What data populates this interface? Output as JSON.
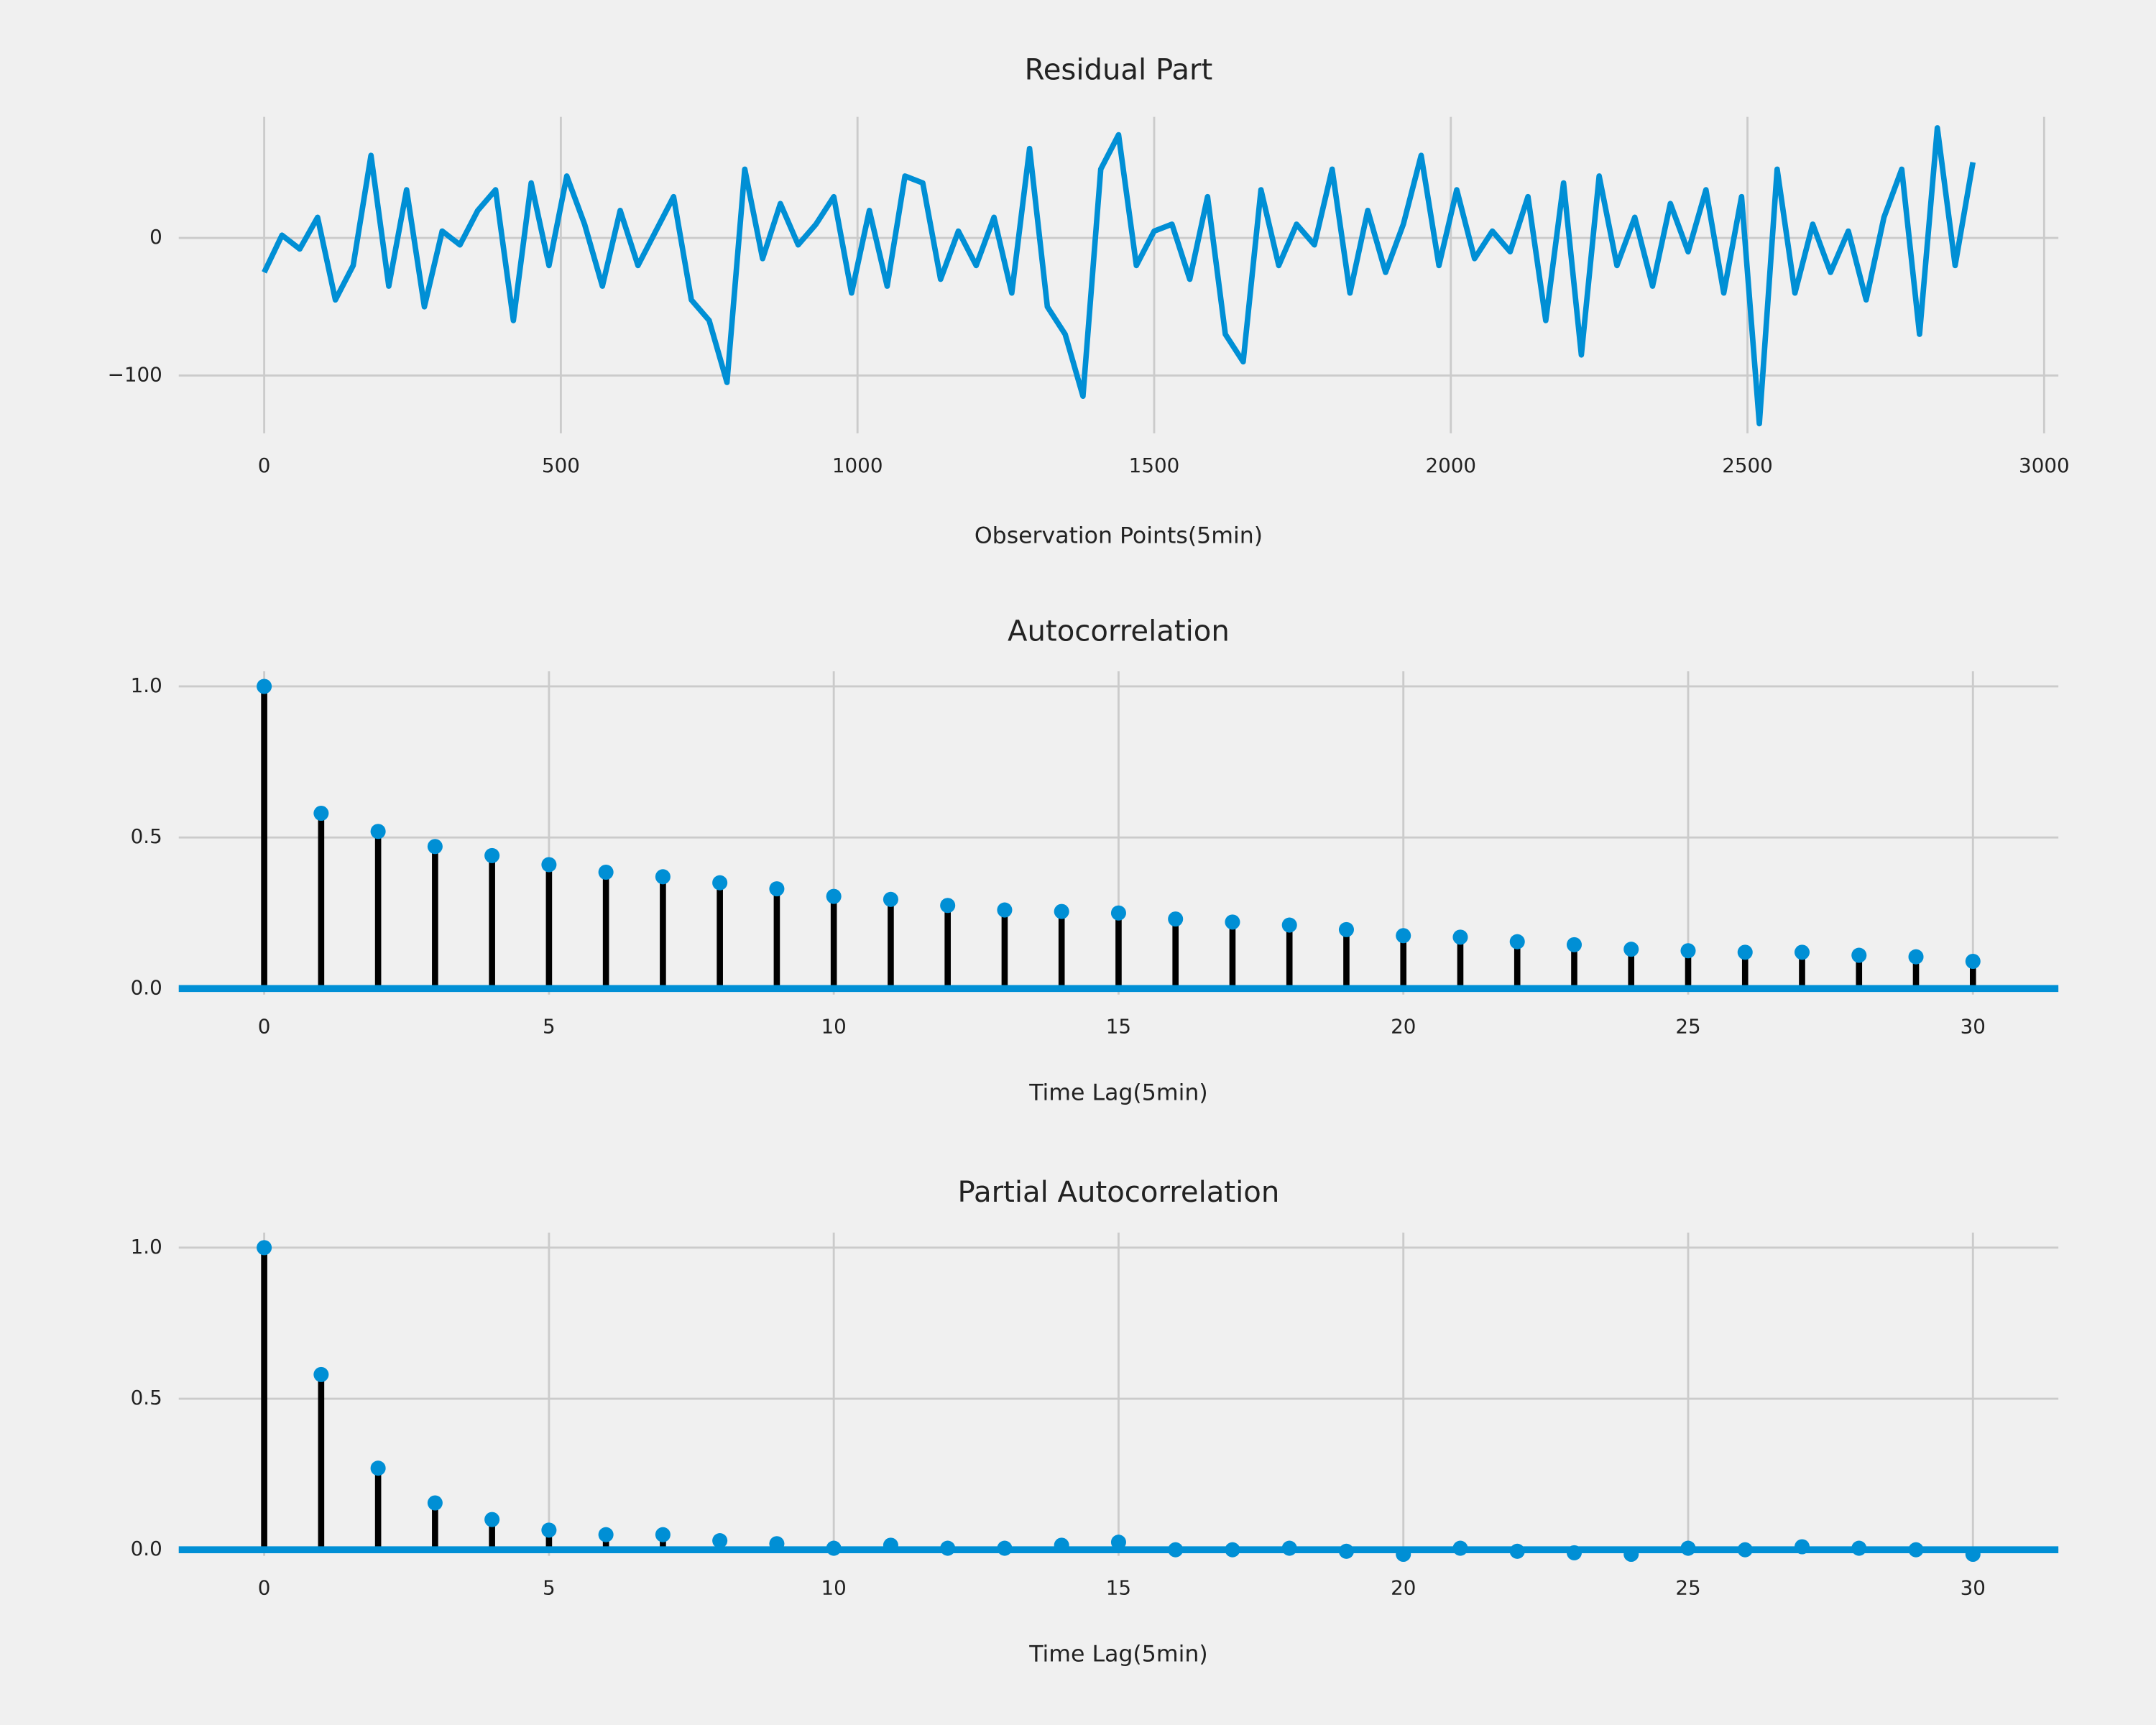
{
  "chart_data": [
    {
      "type": "line",
      "title": "Residual Part",
      "xlabel": "Observation Points(5min)",
      "x": [
        0,
        30,
        60,
        90,
        120,
        150,
        180,
        210,
        240,
        270,
        300,
        330,
        360,
        390,
        420,
        450,
        480,
        510,
        540,
        570,
        600,
        630,
        660,
        690,
        720,
        750,
        780,
        810,
        840,
        870,
        900,
        930,
        960,
        990,
        1020,
        1050,
        1080,
        1110,
        1140,
        1170,
        1200,
        1230,
        1260,
        1290,
        1320,
        1350,
        1380,
        1410,
        1440,
        1470,
        1500,
        1530,
        1560,
        1590,
        1620,
        1650,
        1680,
        1710,
        1740,
        1770,
        1800,
        1830,
        1860,
        1890,
        1920,
        1950,
        1980,
        2010,
        2040,
        2070,
        2100,
        2130,
        2160,
        2190,
        2220,
        2250,
        2280,
        2310,
        2340,
        2370,
        2400,
        2430,
        2460,
        2490,
        2520,
        2550,
        2580,
        2610,
        2640,
        2670,
        2700,
        2730,
        2760,
        2790,
        2820,
        2850,
        2880
      ],
      "series": [
        {
          "color": "#008fd5",
          "values": [
            -25,
            2,
            -8,
            15,
            -45,
            -20,
            60,
            -35,
            35,
            -50,
            5,
            -5,
            20,
            35,
            -60,
            40,
            -20,
            45,
            10,
            -35,
            20,
            -20,
            5,
            30,
            -45,
            -60,
            -105,
            50,
            -15,
            25,
            -5,
            10,
            30,
            -40,
            20,
            -35,
            45,
            40,
            -30,
            5,
            -20,
            15,
            -40,
            65,
            -50,
            -70,
            -115,
            50,
            75,
            -20,
            5,
            10,
            -30,
            30,
            -70,
            -90,
            35,
            -20,
            10,
            -5,
            50,
            -40,
            20,
            -25,
            10,
            60,
            -20,
            35,
            -15,
            5,
            -10,
            30,
            -60,
            40,
            -85,
            45,
            -20,
            15,
            -35,
            25,
            -10,
            35,
            -40,
            30,
            -135,
            50,
            -40,
            10,
            -25,
            5,
            -45,
            15,
            50,
            -70,
            80,
            -20,
            55
          ]
        }
      ],
      "xlim": [
        -144,
        3024
      ],
      "ylim": [
        -142,
        88
      ],
      "xticks": [
        0,
        500,
        1000,
        1500,
        2000,
        2500,
        3000
      ],
      "yticks": [
        {
          "value": -100,
          "label": "−100"
        },
        0
      ],
      "grid": true
    },
    {
      "type": "stem",
      "title": "Autocorrelation",
      "xlabel": "Time Lag(5min)",
      "x": [
        0,
        1,
        2,
        3,
        4,
        5,
        6,
        7,
        8,
        9,
        10,
        11,
        12,
        13,
        14,
        15,
        16,
        17,
        18,
        19,
        20,
        21,
        22,
        23,
        24,
        25,
        26,
        27,
        28,
        29,
        30
      ],
      "series": [
        {
          "color": "#008fd5",
          "values": [
            1,
            0.58,
            0.52,
            0.47,
            0.44,
            0.41,
            0.385,
            0.37,
            0.35,
            0.33,
            0.305,
            0.295,
            0.275,
            0.26,
            0.255,
            0.25,
            0.23,
            0.22,
            0.21,
            0.195,
            0.175,
            0.17,
            0.155,
            0.145,
            0.13,
            0.125,
            0.12,
            0.12,
            0.11,
            0.105,
            0.09
          ]
        }
      ],
      "xlim": [
        -1.5,
        31.5
      ],
      "ylim": [
        -0.02,
        1.05
      ],
      "xticks": [
        0,
        5,
        10,
        15,
        20,
        25,
        30
      ],
      "yticks": [
        {
          "value": 0,
          "label": "0.0"
        },
        0.5,
        {
          "value": 1,
          "label": "1.0"
        }
      ],
      "grid": true
    },
    {
      "type": "stem",
      "title": "Partial Autocorrelation",
      "xlabel": "Time Lag(5min)",
      "x": [
        0,
        1,
        2,
        3,
        4,
        5,
        6,
        7,
        8,
        9,
        10,
        11,
        12,
        13,
        14,
        15,
        16,
        17,
        18,
        19,
        20,
        21,
        22,
        23,
        24,
        25,
        26,
        27,
        28,
        29,
        30
      ],
      "series": [
        {
          "color": "#008fd5",
          "values": [
            1,
            0.58,
            0.27,
            0.155,
            0.1,
            0.065,
            0.05,
            0.05,
            0.03,
            0.02,
            0.005,
            0.015,
            0.005,
            0.005,
            0.015,
            0.025,
            0,
            0,
            0.005,
            -0.005,
            -0.015,
            0.005,
            -0.005,
            -0.01,
            -0.015,
            0.005,
            0,
            0.01,
            0.005,
            0,
            -0.015
          ]
        }
      ],
      "xlim": [
        -1.5,
        31.5
      ],
      "ylim": [
        -0.02,
        1.05
      ],
      "xticks": [
        0,
        5,
        10,
        15,
        20,
        25,
        30
      ],
      "yticks": [
        {
          "value": 0,
          "label": "0.0"
        },
        0.5,
        {
          "value": 1,
          "label": "1.0"
        }
      ],
      "grid": true
    }
  ]
}
